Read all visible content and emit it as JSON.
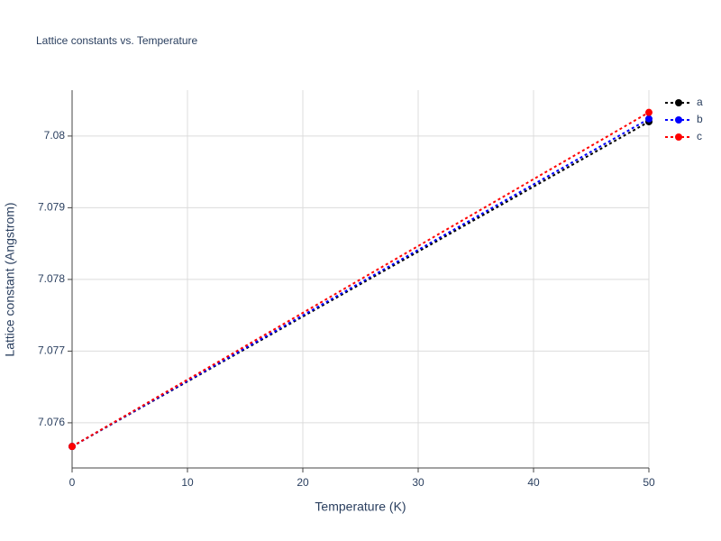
{
  "chart_data": {
    "type": "line",
    "title": "Lattice constants vs. Temperature",
    "x_label": "Temperature (K)",
    "y_label": "Lattice constant (Angstrom)",
    "x": [
      0,
      50
    ],
    "series": [
      {
        "name": "a",
        "color": "#000000",
        "values": [
          7.07567,
          7.0802
        ]
      },
      {
        "name": "b",
        "color": "#0000ff",
        "values": [
          7.07567,
          7.08024
        ]
      },
      {
        "name": "c",
        "color": "#ff0000",
        "values": [
          7.07567,
          7.08033
        ]
      }
    ],
    "xlim": [
      0,
      50
    ],
    "xticks": [
      0,
      10,
      20,
      30,
      40,
      50
    ],
    "ylim": [
      7.07537,
      7.08064
    ],
    "yticks": [
      7.076,
      7.077,
      7.078,
      7.079,
      7.08
    ],
    "grid": true,
    "legend": "top-right",
    "line_style": "dotted"
  }
}
